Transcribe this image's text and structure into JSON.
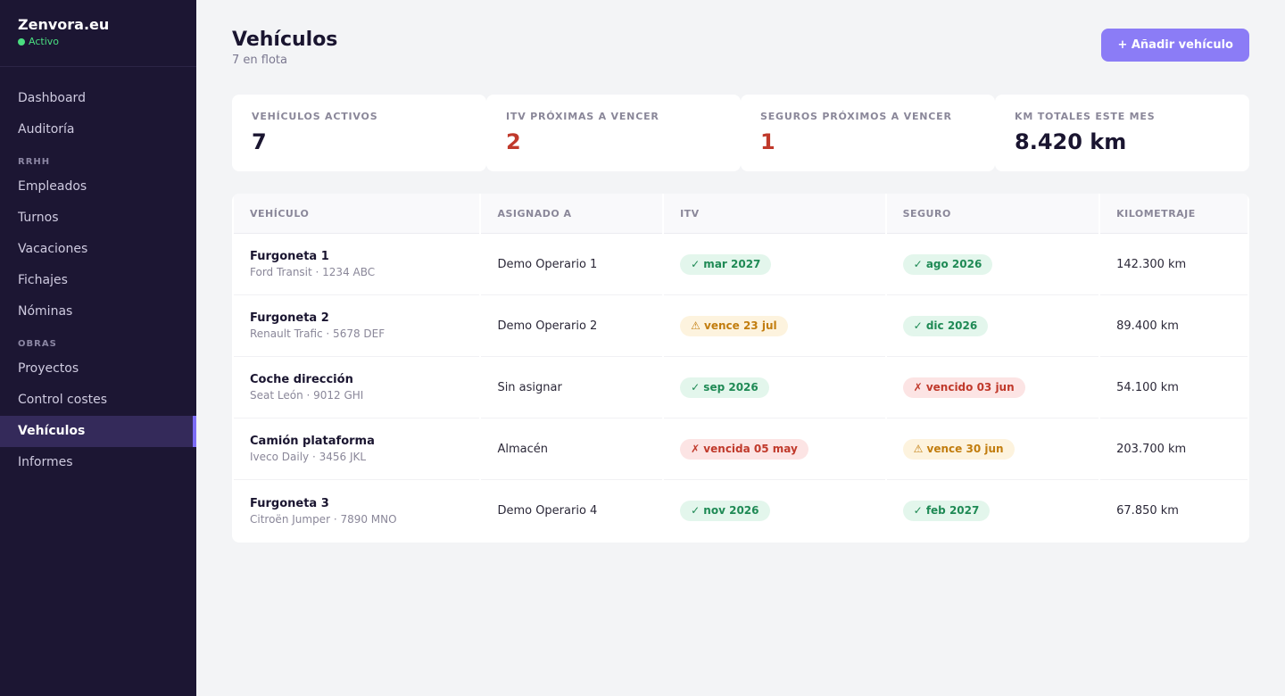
{
  "sidebar": {
    "brand": "Zenvora.eu",
    "status": "Activo",
    "items_top": [
      {
        "label": "Dashboard"
      },
      {
        "label": "Auditoría"
      }
    ],
    "section_rrhh": "RRHH",
    "items_rrhh": [
      {
        "label": "Empleados"
      },
      {
        "label": "Turnos"
      },
      {
        "label": "Vacaciones"
      },
      {
        "label": "Fichajes"
      },
      {
        "label": "Nóminas"
      }
    ],
    "section_obras": "OBRAS",
    "items_obras": [
      {
        "label": "Proyectos"
      },
      {
        "label": "Control costes"
      },
      {
        "label": "Vehículos",
        "active": true
      },
      {
        "label": "Informes"
      }
    ]
  },
  "header": {
    "title": "Vehículos",
    "subtitle": "7 en flota",
    "add_button": "+ Añadir vehículo"
  },
  "stats": [
    {
      "label": "VEHÍCULOS ACTIVOS",
      "value": "7"
    },
    {
      "label": "ITV PRÓXIMAS A VENCER",
      "value": "2"
    },
    {
      "label": "SEGUROS PRÓXIMOS A VENCER",
      "value": "1"
    },
    {
      "label": "KM TOTALES ESTE MES",
      "value": "8.420 km"
    }
  ],
  "table": {
    "columns": [
      "VEHÍCULO",
      "ASIGNADO A",
      "ITV",
      "SEGURO",
      "KILOMETRAJE"
    ],
    "rows": [
      {
        "name": "Furgoneta 1",
        "detail": "Ford Transit · 1234 ABC",
        "assigned": "Demo Operario 1",
        "itv": "✓ mar 2027",
        "itv_status": "ok",
        "seguro": "✓ ago 2026",
        "seguro_status": "ok",
        "km": "142.300 km"
      },
      {
        "name": "Furgoneta 2",
        "detail": "Renault Trafic · 5678 DEF",
        "assigned": "Demo Operario 2",
        "itv": "⚠ vence 23 jul",
        "itv_status": "warn",
        "seguro": "✓ dic 2026",
        "seguro_status": "ok",
        "km": "89.400 km"
      },
      {
        "name": "Coche dirección",
        "detail": "Seat León · 9012 GHI",
        "assigned": "Sin asignar",
        "itv": "✓ sep 2026",
        "itv_status": "ok",
        "seguro": "✗ vencido 03 jun",
        "seguro_status": "bad",
        "km": "54.100 km"
      },
      {
        "name": "Camión plataforma",
        "detail": "Iveco Daily · 3456 JKL",
        "assigned": "Almacén",
        "itv": "✗ vencida 05 may",
        "itv_status": "bad",
        "seguro": "⚠ vence 30 jun",
        "seguro_status": "warn",
        "km": "203.700 km"
      },
      {
        "name": "Furgoneta 3",
        "detail": "Citroën Jumper · 7890 MNO",
        "assigned": "Demo Operario 4",
        "itv": "✓ nov 2026",
        "itv_status": "ok",
        "seguro": "✓ feb 2027",
        "seguro_status": "ok",
        "km": "67.850 km"
      }
    ]
  },
  "colors": {
    "sidebar_bg": "#1c1633",
    "accent": "#8b7cf6",
    "ok": "#1f8a55",
    "warn": "#c27d0e",
    "bad": "#c0392b"
  }
}
